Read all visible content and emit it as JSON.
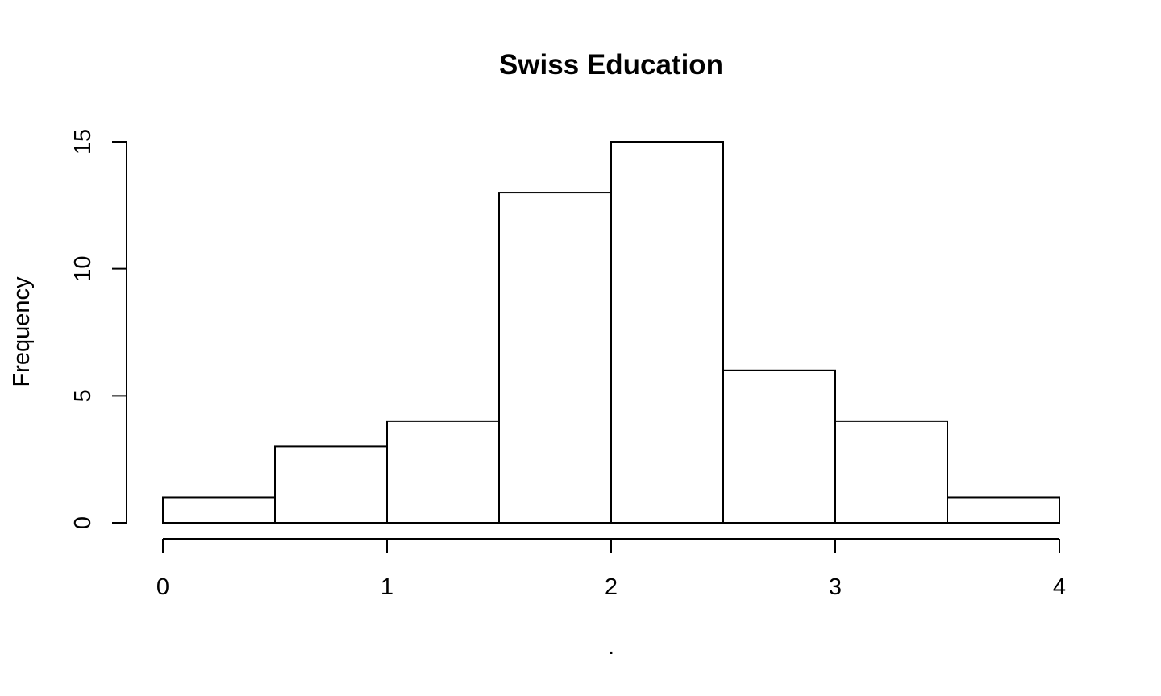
{
  "chart_data": {
    "type": "bar",
    "subtype": "histogram",
    "title": "Swiss Education",
    "xlabel": ".",
    "ylabel": "Frequency",
    "bins": [
      {
        "x0": 0.0,
        "x1": 0.5,
        "count": 1
      },
      {
        "x0": 0.5,
        "x1": 1.0,
        "count": 3
      },
      {
        "x0": 1.0,
        "x1": 1.5,
        "count": 4
      },
      {
        "x0": 1.5,
        "x1": 2.0,
        "count": 13
      },
      {
        "x0": 2.0,
        "x1": 2.5,
        "count": 15
      },
      {
        "x0": 2.5,
        "x1": 3.0,
        "count": 6
      },
      {
        "x0": 3.0,
        "x1": 3.5,
        "count": 4
      },
      {
        "x0": 3.5,
        "x1": 4.0,
        "count": 1
      }
    ],
    "xlim": [
      0,
      4
    ],
    "ylim": [
      0,
      15
    ],
    "x_ticks": [
      "0",
      "1",
      "2",
      "3",
      "4"
    ],
    "y_ticks": [
      "0",
      "5",
      "10",
      "15"
    ],
    "grid": false,
    "colors": {
      "bar_fill": "#ffffff",
      "bar_stroke": "#000000"
    }
  }
}
